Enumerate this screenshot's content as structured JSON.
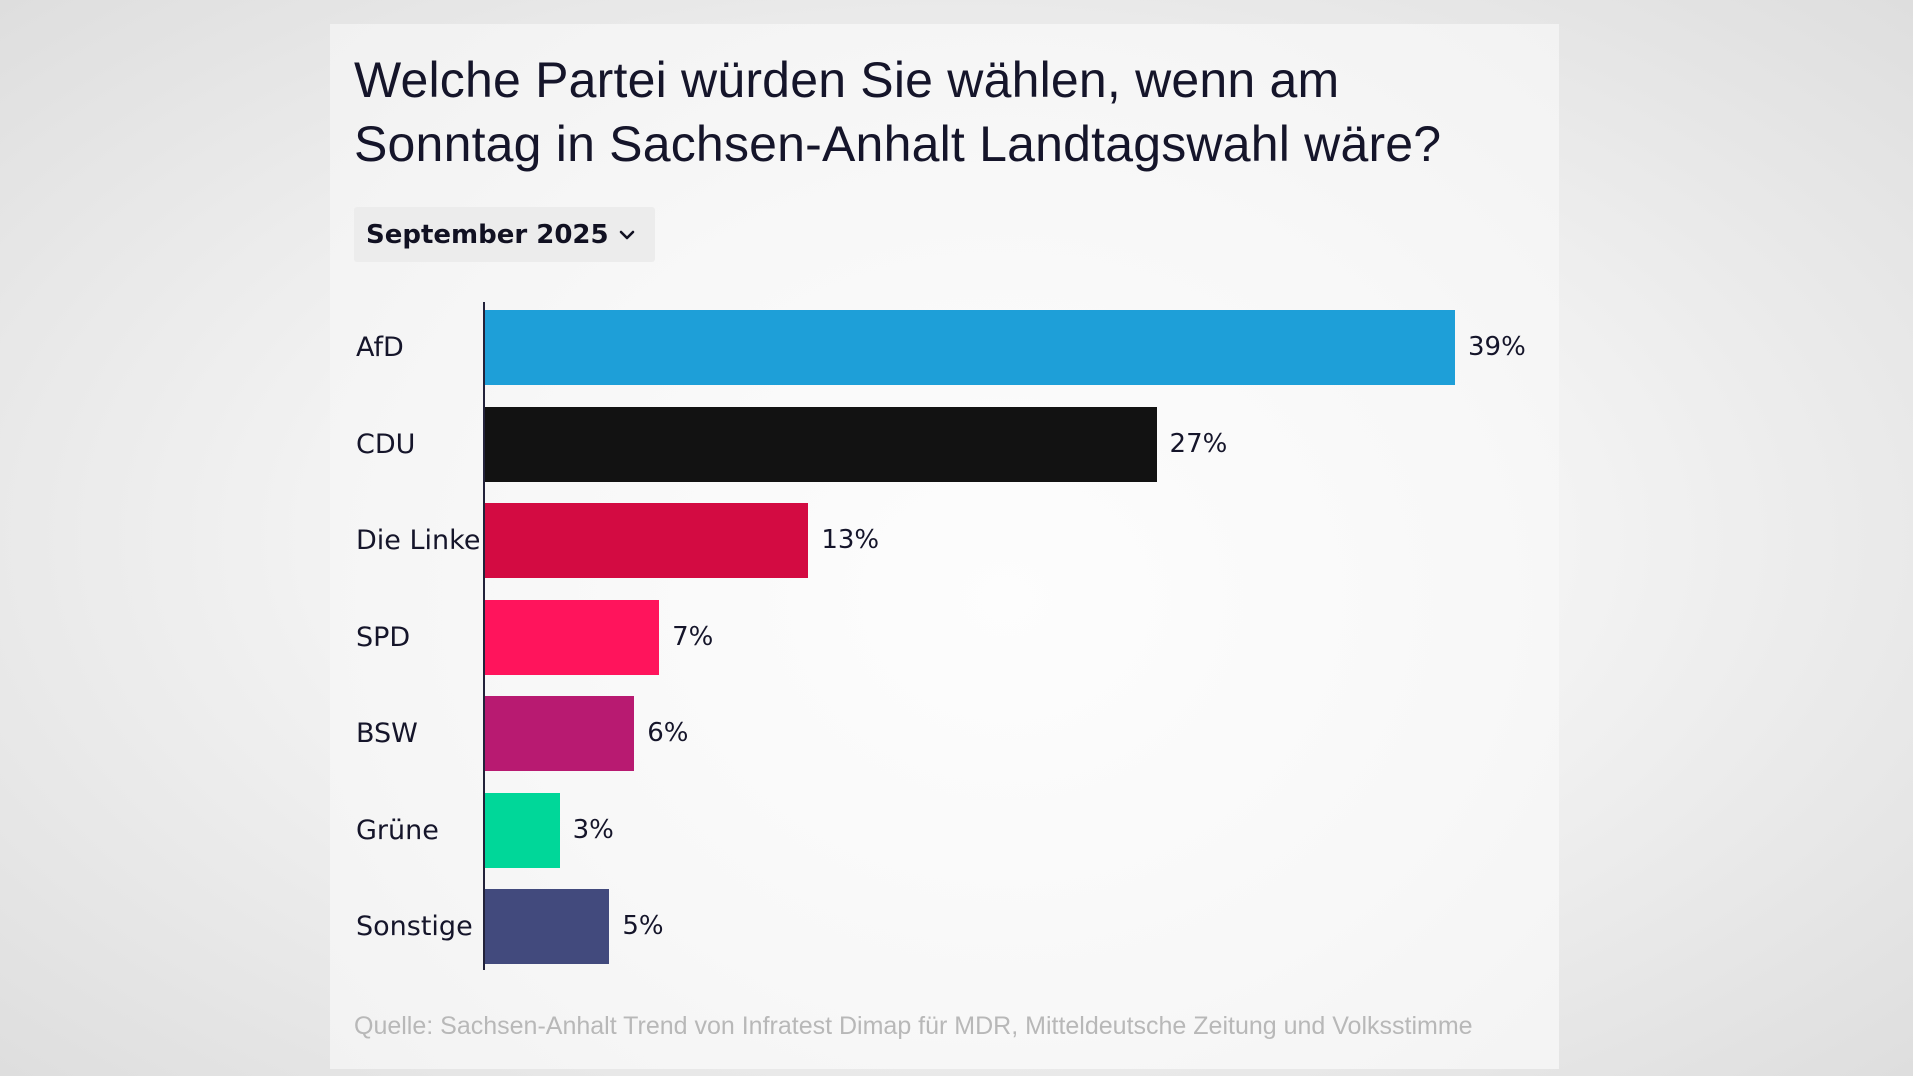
{
  "header": {
    "title": "Welche Partei würden Sie wählen, wenn am Sonntag in Sachsen-Anhalt Landtagswahl wäre?"
  },
  "period_select": {
    "selected": "September 2025",
    "icon": "chevron-down-icon"
  },
  "footer": {
    "source": "Quelle: Sachsen-Anhalt Trend von Infratest Dimap für MDR, Mitteldeutsche Zeitung und Volksstimme"
  },
  "chart_data": {
    "type": "bar",
    "orientation": "horizontal",
    "title": "Welche Partei würden Sie wählen, wenn am Sonntag in Sachsen-Anhalt Landtagswahl wäre?",
    "subtitle": "September 2025",
    "categories": [
      "AfD",
      "CDU",
      "Die Linke",
      "SPD",
      "BSW",
      "Grüne",
      "Sonstige"
    ],
    "values": [
      39,
      27,
      13,
      7,
      6,
      3,
      5
    ],
    "value_labels": [
      "39%",
      "27%",
      "13%",
      "7%",
      "6%",
      "3%",
      "5%"
    ],
    "colors": [
      "#1e9fd8",
      "#121212",
      "#d30b42",
      "#ff145c",
      "#b81a71",
      "#00d799",
      "#424a7d"
    ],
    "unit": "%",
    "xlabel": "",
    "ylabel": "",
    "xlim": [
      0,
      39
    ],
    "grid": false,
    "legend": "none",
    "source": "Quelle: Sachsen-Anhalt Trend von Infratest Dimap für MDR, Mitteldeutsche Zeitung und Volksstimme"
  }
}
